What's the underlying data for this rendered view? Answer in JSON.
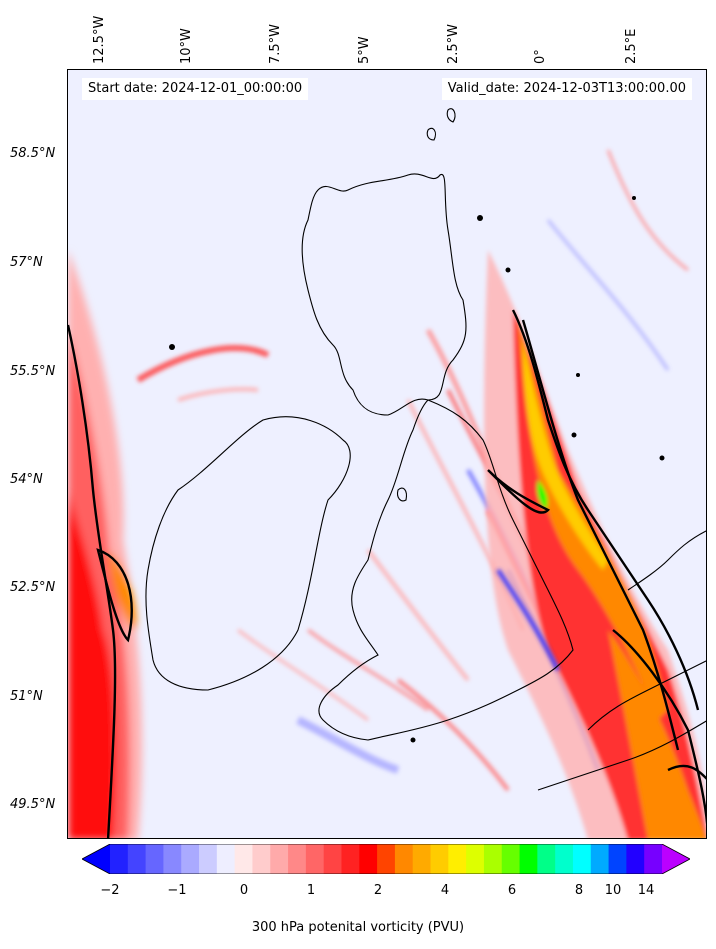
{
  "header": {
    "start_date": "Start date: 2024-12-01_00:00:00",
    "valid_date": "Valid_date: 2024-12-03T13:00:00.00"
  },
  "longitude_labels": [
    "12.5°W",
    "10°W",
    "7.5°W",
    "5°W",
    "2.5°W",
    "0°",
    "2.5°E"
  ],
  "latitude_labels": [
    "58.5°N",
    "57°N",
    "55.5°N",
    "54°N",
    "52.5°N",
    "51°N",
    "49.5°N"
  ],
  "colorbar": {
    "label": "300 hPa potenital vorticity (PVU)",
    "ticks": [
      "−2",
      "−1",
      "0",
      "1",
      "2",
      "4",
      "6",
      "8",
      "10",
      "14"
    ],
    "colors": [
      "#0000ff",
      "#2222ff",
      "#4444ff",
      "#6666ff",
      "#8888ff",
      "#aaaaff",
      "#ccccff",
      "#eeeeff",
      "#ffe8e8",
      "#ffcccc",
      "#ffaaaa",
      "#ff8888",
      "#ff6666",
      "#ff4444",
      "#ff2222",
      "#ff0000",
      "#ff4400",
      "#ff8800",
      "#ffaa00",
      "#ffcc00",
      "#ffee00",
      "#ddff00",
      "#aaff00",
      "#66ff00",
      "#00ff00",
      "#00ff88",
      "#00ffcc",
      "#00ffff",
      "#00aaff",
      "#0044ff",
      "#2200ff",
      "#7700ff",
      "#bb00ff"
    ]
  },
  "field_colors": {
    "background": "#eef0ff",
    "weak_positive": "#ffd0d0",
    "positive": "#ff4040",
    "strong": "#ff0000",
    "very_strong": "#ff8800",
    "extreme": "#ffee00",
    "peak": "#00ff00",
    "negative": "#8888ff",
    "contour": "#000000"
  }
}
